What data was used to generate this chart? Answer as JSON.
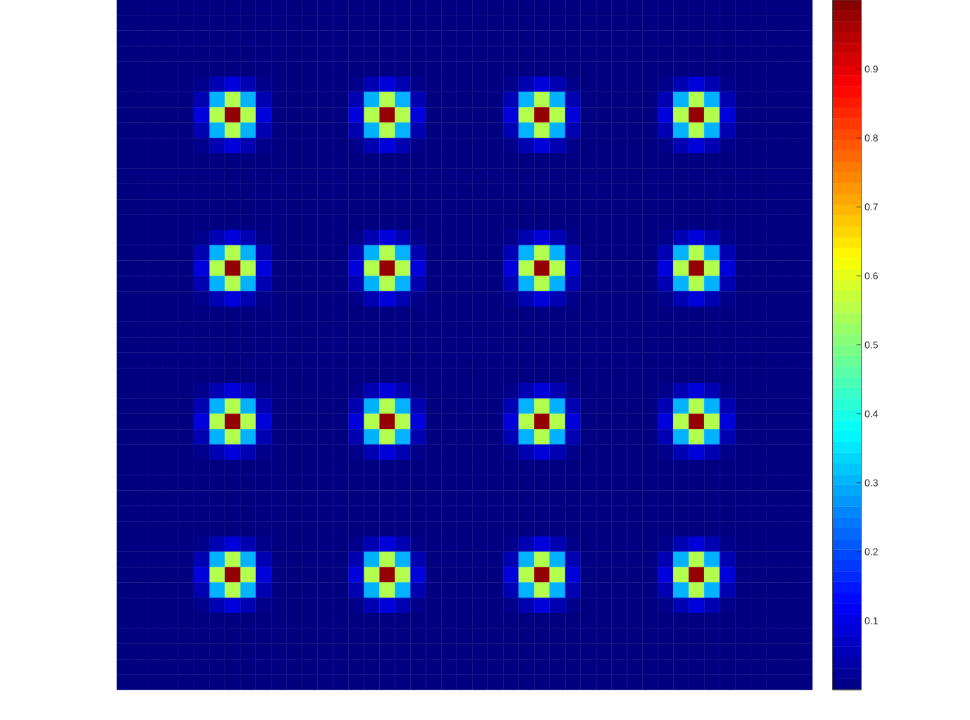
{
  "chart_data": {
    "type": "heatmap",
    "categories": [
      null,
      null,
      null,
      null,
      null,
      null,
      null,
      null,
      null,
      null,
      null,
      null,
      null,
      null,
      null,
      null,
      null,
      null,
      null,
      null,
      null,
      null,
      null,
      null,
      null,
      null,
      null,
      null,
      null,
      null,
      null,
      null,
      null,
      null,
      null,
      null,
      null,
      null,
      null,
      null,
      null,
      null,
      null,
      null,
      null
    ],
    "y_categories": [
      null,
      null,
      null,
      null,
      null,
      null,
      null,
      null,
      null,
      null,
      null,
      null,
      null,
      null,
      null,
      null,
      null,
      null,
      null,
      null,
      null,
      null,
      null,
      null,
      null,
      null,
      null,
      null,
      null,
      null,
      null,
      null,
      null,
      null,
      null,
      null,
      null,
      null,
      null,
      null,
      null,
      null,
      null,
      null,
      null
    ],
    "cells": [
      [
        0,
        0,
        0,
        0,
        0,
        0,
        0,
        0,
        0,
        0,
        0,
        0,
        0,
        0,
        0,
        0,
        0,
        0,
        0,
        0,
        0,
        0,
        0,
        0,
        0,
        0,
        0,
        0,
        0,
        0,
        0,
        0,
        0,
        0,
        0,
        0,
        0,
        0,
        0,
        0,
        0,
        0,
        0,
        0,
        0
      ],
      [
        0,
        0,
        0,
        0,
        0,
        0,
        0,
        0,
        0,
        0,
        0,
        0,
        0,
        0,
        0,
        0,
        0,
        0,
        0,
        0,
        0,
        0,
        0,
        0,
        0,
        0,
        0,
        0,
        0,
        0,
        0,
        0,
        0,
        0,
        0,
        0,
        0,
        0,
        0,
        0,
        0,
        0,
        0,
        0,
        0
      ],
      [
        0,
        0,
        0,
        0,
        0,
        0,
        0,
        0,
        0,
        0,
        0,
        0,
        0,
        0,
        0,
        0,
        0,
        0,
        0,
        0,
        0,
        0,
        0,
        0,
        0,
        0,
        0,
        0,
        0,
        0,
        0,
        0,
        0,
        0,
        0,
        0,
        0,
        0,
        0,
        0,
        0,
        0,
        0,
        0,
        0
      ],
      [
        0,
        0,
        0,
        0,
        0,
        0,
        0,
        0,
        0,
        0,
        0,
        0,
        0,
        0,
        0,
        0,
        0,
        0,
        0,
        0,
        0,
        0,
        0,
        0,
        0,
        0,
        0,
        0,
        0,
        0,
        0,
        0,
        0,
        0,
        0,
        0,
        0,
        0,
        0,
        0,
        0,
        0,
        0,
        0,
        0
      ],
      [
        0,
        0,
        0,
        0,
        0,
        0,
        0,
        0,
        0,
        0,
        0,
        0,
        0,
        0,
        0,
        0,
        0,
        0,
        0,
        0,
        0,
        0,
        0,
        0,
        0,
        0,
        0,
        0,
        0,
        0,
        0,
        0,
        0,
        0,
        0,
        0,
        0,
        0,
        0,
        0,
        0,
        0,
        0,
        0,
        0
      ],
      [
        0,
        0,
        0,
        0,
        0,
        0.01,
        0.05,
        0.09,
        0.05,
        0.01,
        0,
        0,
        0,
        0,
        0,
        0.01,
        0.05,
        0.09,
        0.05,
        0.01,
        0,
        0,
        0,
        0,
        0,
        0.01,
        0.05,
        0.09,
        0.05,
        0.01,
        0,
        0,
        0,
        0,
        0,
        0.01,
        0.05,
        0.09,
        0.05,
        0.01,
        0,
        0,
        0,
        0,
        0
      ],
      [
        0,
        0,
        0,
        0,
        0,
        0.05,
        0.3,
        0.55,
        0.3,
        0.05,
        0,
        0,
        0,
        0,
        0,
        0.05,
        0.3,
        0.55,
        0.3,
        0.05,
        0,
        0,
        0,
        0,
        0,
        0.05,
        0.3,
        0.55,
        0.3,
        0.05,
        0,
        0,
        0,
        0,
        0,
        0.05,
        0.3,
        0.55,
        0.3,
        0.05,
        0,
        0,
        0,
        0,
        0
      ],
      [
        0,
        0,
        0,
        0,
        0,
        0.09,
        0.55,
        0.98,
        0.55,
        0.09,
        0,
        0,
        0,
        0,
        0,
        0.09,
        0.55,
        0.98,
        0.55,
        0.09,
        0,
        0,
        0,
        0,
        0,
        0.09,
        0.55,
        0.98,
        0.55,
        0.09,
        0,
        0,
        0,
        0,
        0,
        0.09,
        0.55,
        0.98,
        0.55,
        0.09,
        0,
        0,
        0,
        0,
        0
      ],
      [
        0,
        0,
        0,
        0,
        0,
        0.05,
        0.3,
        0.55,
        0.3,
        0.05,
        0,
        0,
        0,
        0,
        0,
        0.05,
        0.3,
        0.55,
        0.3,
        0.05,
        0,
        0,
        0,
        0,
        0,
        0.05,
        0.3,
        0.55,
        0.3,
        0.05,
        0,
        0,
        0,
        0,
        0,
        0.05,
        0.3,
        0.55,
        0.3,
        0.05,
        0,
        0,
        0,
        0,
        0
      ],
      [
        0,
        0,
        0,
        0,
        0,
        0.01,
        0.05,
        0.09,
        0.05,
        0.01,
        0,
        0,
        0,
        0,
        0,
        0.01,
        0.05,
        0.09,
        0.05,
        0.01,
        0,
        0,
        0,
        0,
        0,
        0.01,
        0.05,
        0.09,
        0.05,
        0.01,
        0,
        0,
        0,
        0,
        0,
        0.01,
        0.05,
        0.09,
        0.05,
        0.01,
        0,
        0,
        0,
        0,
        0
      ],
      [
        0,
        0,
        0,
        0,
        0,
        0,
        0,
        0,
        0,
        0,
        0,
        0,
        0,
        0,
        0,
        0,
        0,
        0,
        0,
        0,
        0,
        0,
        0,
        0,
        0,
        0,
        0,
        0,
        0,
        0,
        0,
        0,
        0,
        0,
        0,
        0,
        0,
        0,
        0,
        0,
        0,
        0,
        0,
        0,
        0
      ],
      [
        0,
        0,
        0,
        0,
        0,
        0,
        0,
        0,
        0,
        0,
        0,
        0,
        0,
        0,
        0,
        0,
        0,
        0,
        0,
        0,
        0,
        0,
        0,
        0,
        0,
        0,
        0,
        0,
        0,
        0,
        0,
        0,
        0,
        0,
        0,
        0,
        0,
        0,
        0,
        0,
        0,
        0,
        0,
        0,
        0
      ],
      [
        0,
        0,
        0,
        0,
        0,
        0,
        0,
        0,
        0,
        0,
        0,
        0,
        0,
        0,
        0,
        0,
        0,
        0,
        0,
        0,
        0,
        0,
        0,
        0,
        0,
        0,
        0,
        0,
        0,
        0,
        0,
        0,
        0,
        0,
        0,
        0,
        0,
        0,
        0,
        0,
        0,
        0,
        0,
        0,
        0
      ],
      [
        0,
        0,
        0,
        0,
        0,
        0,
        0,
        0,
        0,
        0,
        0,
        0,
        0,
        0,
        0,
        0,
        0,
        0,
        0,
        0,
        0,
        0,
        0,
        0,
        0,
        0,
        0,
        0,
        0,
        0,
        0,
        0,
        0,
        0,
        0,
        0,
        0,
        0,
        0,
        0,
        0,
        0,
        0,
        0,
        0
      ],
      [
        0,
        0,
        0,
        0,
        0,
        0,
        0,
        0,
        0,
        0,
        0,
        0,
        0,
        0,
        0,
        0,
        0,
        0,
        0,
        0,
        0,
        0,
        0,
        0,
        0,
        0,
        0,
        0,
        0,
        0,
        0,
        0,
        0,
        0,
        0,
        0,
        0,
        0,
        0,
        0,
        0,
        0,
        0,
        0,
        0
      ],
      [
        0,
        0,
        0,
        0,
        0,
        0.01,
        0.05,
        0.09,
        0.05,
        0.01,
        0,
        0,
        0,
        0,
        0,
        0.01,
        0.05,
        0.09,
        0.05,
        0.01,
        0,
        0,
        0,
        0,
        0,
        0.01,
        0.05,
        0.09,
        0.05,
        0.01,
        0,
        0,
        0,
        0,
        0,
        0.01,
        0.05,
        0.09,
        0.05,
        0.01,
        0,
        0,
        0,
        0,
        0
      ],
      [
        0,
        0,
        0,
        0,
        0,
        0.05,
        0.3,
        0.55,
        0.3,
        0.05,
        0,
        0,
        0,
        0,
        0,
        0.05,
        0.3,
        0.55,
        0.3,
        0.05,
        0,
        0,
        0,
        0,
        0,
        0.05,
        0.3,
        0.55,
        0.3,
        0.05,
        0,
        0,
        0,
        0,
        0,
        0.05,
        0.3,
        0.55,
        0.3,
        0.05,
        0,
        0,
        0,
        0,
        0
      ],
      [
        0,
        0,
        0,
        0,
        0,
        0.09,
        0.55,
        0.98,
        0.55,
        0.09,
        0,
        0,
        0,
        0,
        0,
        0.09,
        0.55,
        0.98,
        0.55,
        0.09,
        0,
        0,
        0,
        0,
        0,
        0.09,
        0.55,
        0.98,
        0.55,
        0.09,
        0,
        0,
        0,
        0,
        0,
        0.09,
        0.55,
        0.98,
        0.55,
        0.09,
        0,
        0,
        0,
        0,
        0
      ],
      [
        0,
        0,
        0,
        0,
        0,
        0.05,
        0.3,
        0.55,
        0.3,
        0.05,
        0,
        0,
        0,
        0,
        0,
        0.05,
        0.3,
        0.55,
        0.3,
        0.05,
        0,
        0,
        0,
        0,
        0,
        0.05,
        0.3,
        0.55,
        0.3,
        0.05,
        0,
        0,
        0,
        0,
        0,
        0.05,
        0.3,
        0.55,
        0.3,
        0.05,
        0,
        0,
        0,
        0,
        0
      ],
      [
        0,
        0,
        0,
        0,
        0,
        0.01,
        0.05,
        0.09,
        0.05,
        0.01,
        0,
        0,
        0,
        0,
        0,
        0.01,
        0.05,
        0.09,
        0.05,
        0.01,
        0,
        0,
        0,
        0,
        0,
        0.01,
        0.05,
        0.09,
        0.05,
        0.01,
        0,
        0,
        0,
        0,
        0,
        0.01,
        0.05,
        0.09,
        0.05,
        0.01,
        0,
        0,
        0,
        0,
        0
      ],
      [
        0,
        0,
        0,
        0,
        0,
        0,
        0,
        0,
        0,
        0,
        0,
        0,
        0,
        0,
        0,
        0,
        0,
        0,
        0,
        0,
        0,
        0,
        0,
        0,
        0,
        0,
        0,
        0,
        0,
        0,
        0,
        0,
        0,
        0,
        0,
        0,
        0,
        0,
        0,
        0,
        0,
        0,
        0,
        0,
        0
      ],
      [
        0,
        0,
        0,
        0,
        0,
        0,
        0,
        0,
        0,
        0,
        0,
        0,
        0,
        0,
        0,
        0,
        0,
        0,
        0,
        0,
        0,
        0,
        0,
        0,
        0,
        0,
        0,
        0,
        0,
        0,
        0,
        0,
        0,
        0,
        0,
        0,
        0,
        0,
        0,
        0,
        0,
        0,
        0,
        0,
        0
      ],
      [
        0,
        0,
        0,
        0,
        0,
        0,
        0,
        0,
        0,
        0,
        0,
        0,
        0,
        0,
        0,
        0,
        0,
        0,
        0,
        0,
        0,
        0,
        0,
        0,
        0,
        0,
        0,
        0,
        0,
        0,
        0,
        0,
        0,
        0,
        0,
        0,
        0,
        0,
        0,
        0,
        0,
        0,
        0,
        0,
        0
      ],
      [
        0,
        0,
        0,
        0,
        0,
        0,
        0,
        0,
        0,
        0,
        0,
        0,
        0,
        0,
        0,
        0,
        0,
        0,
        0,
        0,
        0,
        0,
        0,
        0,
        0,
        0,
        0,
        0,
        0,
        0,
        0,
        0,
        0,
        0,
        0,
        0,
        0,
        0,
        0,
        0,
        0,
        0,
        0,
        0,
        0
      ],
      [
        0,
        0,
        0,
        0,
        0,
        0,
        0,
        0,
        0,
        0,
        0,
        0,
        0,
        0,
        0,
        0,
        0,
        0,
        0,
        0,
        0,
        0,
        0,
        0,
        0,
        0,
        0,
        0,
        0,
        0,
        0,
        0,
        0,
        0,
        0,
        0,
        0,
        0,
        0,
        0,
        0,
        0,
        0,
        0,
        0
      ],
      [
        0,
        0,
        0,
        0,
        0,
        0.01,
        0.05,
        0.09,
        0.05,
        0.01,
        0,
        0,
        0,
        0,
        0,
        0.01,
        0.05,
        0.09,
        0.05,
        0.01,
        0,
        0,
        0,
        0,
        0,
        0.01,
        0.05,
        0.09,
        0.05,
        0.01,
        0,
        0,
        0,
        0,
        0,
        0.01,
        0.05,
        0.09,
        0.05,
        0.01,
        0,
        0,
        0,
        0,
        0
      ],
      [
        0,
        0,
        0,
        0,
        0,
        0.05,
        0.3,
        0.55,
        0.3,
        0.05,
        0,
        0,
        0,
        0,
        0,
        0.05,
        0.3,
        0.55,
        0.3,
        0.05,
        0,
        0,
        0,
        0,
        0,
        0.05,
        0.3,
        0.55,
        0.3,
        0.05,
        0,
        0,
        0,
        0,
        0,
        0.05,
        0.3,
        0.55,
        0.3,
        0.05,
        0,
        0,
        0,
        0,
        0
      ],
      [
        0,
        0,
        0,
        0,
        0,
        0.09,
        0.55,
        0.98,
        0.55,
        0.09,
        0,
        0,
        0,
        0,
        0,
        0.09,
        0.55,
        0.98,
        0.55,
        0.09,
        0,
        0,
        0,
        0,
        0,
        0.09,
        0.55,
        0.98,
        0.55,
        0.09,
        0,
        0,
        0,
        0,
        0,
        0.09,
        0.55,
        0.98,
        0.55,
        0.09,
        0,
        0,
        0,
        0,
        0
      ],
      [
        0,
        0,
        0,
        0,
        0,
        0.05,
        0.3,
        0.55,
        0.3,
        0.05,
        0,
        0,
        0,
        0,
        0,
        0.05,
        0.3,
        0.55,
        0.3,
        0.05,
        0,
        0,
        0,
        0,
        0,
        0.05,
        0.3,
        0.55,
        0.3,
        0.05,
        0,
        0,
        0,
        0,
        0,
        0.05,
        0.3,
        0.55,
        0.3,
        0.05,
        0,
        0,
        0,
        0,
        0
      ],
      [
        0,
        0,
        0,
        0,
        0,
        0.01,
        0.05,
        0.09,
        0.05,
        0.01,
        0,
        0,
        0,
        0,
        0,
        0.01,
        0.05,
        0.09,
        0.05,
        0.01,
        0,
        0,
        0,
        0,
        0,
        0.01,
        0.05,
        0.09,
        0.05,
        0.01,
        0,
        0,
        0,
        0,
        0,
        0.01,
        0.05,
        0.09,
        0.05,
        0.01,
        0,
        0,
        0,
        0,
        0
      ],
      [
        0,
        0,
        0,
        0,
        0,
        0,
        0,
        0,
        0,
        0,
        0,
        0,
        0,
        0,
        0,
        0,
        0,
        0,
        0,
        0,
        0,
        0,
        0,
        0,
        0,
        0,
        0,
        0,
        0,
        0,
        0,
        0,
        0,
        0,
        0,
        0,
        0,
        0,
        0,
        0,
        0,
        0,
        0,
        0,
        0
      ],
      [
        0,
        0,
        0,
        0,
        0,
        0,
        0,
        0,
        0,
        0,
        0,
        0,
        0,
        0,
        0,
        0,
        0,
        0,
        0,
        0,
        0,
        0,
        0,
        0,
        0,
        0,
        0,
        0,
        0,
        0,
        0,
        0,
        0,
        0,
        0,
        0,
        0,
        0,
        0,
        0,
        0,
        0,
        0,
        0,
        0
      ],
      [
        0,
        0,
        0,
        0,
        0,
        0,
        0,
        0,
        0,
        0,
        0,
        0,
        0,
        0,
        0,
        0,
        0,
        0,
        0,
        0,
        0,
        0,
        0,
        0,
        0,
        0,
        0,
        0,
        0,
        0,
        0,
        0,
        0,
        0,
        0,
        0,
        0,
        0,
        0,
        0,
        0,
        0,
        0,
        0,
        0
      ],
      [
        0,
        0,
        0,
        0,
        0,
        0,
        0,
        0,
        0,
        0,
        0,
        0,
        0,
        0,
        0,
        0,
        0,
        0,
        0,
        0,
        0,
        0,
        0,
        0,
        0,
        0,
        0,
        0,
        0,
        0,
        0,
        0,
        0,
        0,
        0,
        0,
        0,
        0,
        0,
        0,
        0,
        0,
        0,
        0,
        0
      ],
      [
        0,
        0,
        0,
        0,
        0,
        0,
        0,
        0,
        0,
        0,
        0,
        0,
        0,
        0,
        0,
        0,
        0,
        0,
        0,
        0,
        0,
        0,
        0,
        0,
        0,
        0,
        0,
        0,
        0,
        0,
        0,
        0,
        0,
        0,
        0,
        0,
        0,
        0,
        0,
        0,
        0,
        0,
        0,
        0,
        0
      ],
      [
        0,
        0,
        0,
        0,
        0,
        0.01,
        0.05,
        0.09,
        0.05,
        0.01,
        0,
        0,
        0,
        0,
        0,
        0.01,
        0.05,
        0.09,
        0.05,
        0.01,
        0,
        0,
        0,
        0,
        0,
        0.01,
        0.05,
        0.09,
        0.05,
        0.01,
        0,
        0,
        0,
        0,
        0,
        0.01,
        0.05,
        0.09,
        0.05,
        0.01,
        0,
        0,
        0,
        0,
        0
      ],
      [
        0,
        0,
        0,
        0,
        0,
        0.05,
        0.3,
        0.55,
        0.3,
        0.05,
        0,
        0,
        0,
        0,
        0,
        0.05,
        0.3,
        0.55,
        0.3,
        0.05,
        0,
        0,
        0,
        0,
        0,
        0.05,
        0.3,
        0.55,
        0.3,
        0.05,
        0,
        0,
        0,
        0,
        0,
        0.05,
        0.3,
        0.55,
        0.3,
        0.05,
        0,
        0,
        0,
        0,
        0
      ],
      [
        0,
        0,
        0,
        0,
        0,
        0.09,
        0.55,
        0.98,
        0.55,
        0.09,
        0,
        0,
        0,
        0,
        0,
        0.09,
        0.55,
        0.98,
        0.55,
        0.09,
        0,
        0,
        0,
        0,
        0,
        0.09,
        0.55,
        0.98,
        0.55,
        0.09,
        0,
        0,
        0,
        0,
        0,
        0.09,
        0.55,
        0.98,
        0.55,
        0.09,
        0,
        0,
        0,
        0,
        0
      ],
      [
        0,
        0,
        0,
        0,
        0,
        0.05,
        0.3,
        0.55,
        0.3,
        0.05,
        0,
        0,
        0,
        0,
        0,
        0.05,
        0.3,
        0.55,
        0.3,
        0.05,
        0,
        0,
        0,
        0,
        0,
        0.05,
        0.3,
        0.55,
        0.3,
        0.05,
        0,
        0,
        0,
        0,
        0,
        0.05,
        0.3,
        0.55,
        0.3,
        0.05,
        0,
        0,
        0,
        0,
        0
      ],
      [
        0,
        0,
        0,
        0,
        0,
        0.01,
        0.05,
        0.09,
        0.05,
        0.01,
        0,
        0,
        0,
        0,
        0,
        0.01,
        0.05,
        0.09,
        0.05,
        0.01,
        0,
        0,
        0,
        0,
        0,
        0.01,
        0.05,
        0.09,
        0.05,
        0.01,
        0,
        0,
        0,
        0,
        0,
        0.01,
        0.05,
        0.09,
        0.05,
        0.01,
        0,
        0,
        0,
        0,
        0
      ],
      [
        0,
        0,
        0,
        0,
        0,
        0,
        0,
        0,
        0,
        0,
        0,
        0,
        0,
        0,
        0,
        0,
        0,
        0,
        0,
        0,
        0,
        0,
        0,
        0,
        0,
        0,
        0,
        0,
        0,
        0,
        0,
        0,
        0,
        0,
        0,
        0,
        0,
        0,
        0,
        0,
        0,
        0,
        0,
        0,
        0
      ],
      [
        0,
        0,
        0,
        0,
        0,
        0,
        0,
        0,
        0,
        0,
        0,
        0,
        0,
        0,
        0,
        0,
        0,
        0,
        0,
        0,
        0,
        0,
        0,
        0,
        0,
        0,
        0,
        0,
        0,
        0,
        0,
        0,
        0,
        0,
        0,
        0,
        0,
        0,
        0,
        0,
        0,
        0,
        0,
        0,
        0
      ],
      [
        0,
        0,
        0,
        0,
        0,
        0,
        0,
        0,
        0,
        0,
        0,
        0,
        0,
        0,
        0,
        0,
        0,
        0,
        0,
        0,
        0,
        0,
        0,
        0,
        0,
        0,
        0,
        0,
        0,
        0,
        0,
        0,
        0,
        0,
        0,
        0,
        0,
        0,
        0,
        0,
        0,
        0,
        0,
        0,
        0
      ],
      [
        0,
        0,
        0,
        0,
        0,
        0,
        0,
        0,
        0,
        0,
        0,
        0,
        0,
        0,
        0,
        0,
        0,
        0,
        0,
        0,
        0,
        0,
        0,
        0,
        0,
        0,
        0,
        0,
        0,
        0,
        0,
        0,
        0,
        0,
        0,
        0,
        0,
        0,
        0,
        0,
        0,
        0,
        0,
        0,
        0
      ],
      [
        0,
        0,
        0,
        0,
        0,
        0,
        0,
        0,
        0,
        0,
        0,
        0,
        0,
        0,
        0,
        0,
        0,
        0,
        0,
        0,
        0,
        0,
        0,
        0,
        0,
        0,
        0,
        0,
        0,
        0,
        0,
        0,
        0,
        0,
        0,
        0,
        0,
        0,
        0,
        0,
        0,
        0,
        0,
        0,
        0
      ]
    ],
    "clim": [
      0,
      1
    ],
    "cticks": [
      0.1,
      0.2,
      0.3,
      0.4,
      0.5,
      0.6,
      0.7,
      0.8,
      0.9
    ]
  }
}
